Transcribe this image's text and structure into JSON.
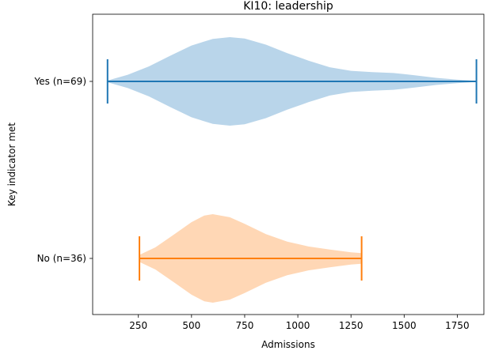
{
  "chart_data": {
    "type": "violin",
    "orientation": "horizontal",
    "title": "KI10: leadership",
    "xlabel": "Admissions",
    "ylabel": "Key indicator met",
    "xlim": [
      35,
      1875
    ],
    "xticks": [
      250,
      500,
      750,
      1000,
      1250,
      1500,
      1750
    ],
    "categories": [
      "No (n=36)",
      "Yes (n=69)"
    ],
    "grid": false,
    "series": [
      {
        "category": "Yes (n=69)",
        "min": 105,
        "max": 1840,
        "color": "#1f77b4",
        "fill": "#b9d5ea",
        "density": [
          [
            105,
            0.02
          ],
          [
            200,
            0.15
          ],
          [
            300,
            0.34
          ],
          [
            400,
            0.58
          ],
          [
            500,
            0.81
          ],
          [
            600,
            0.96
          ],
          [
            680,
            1.0
          ],
          [
            750,
            0.97
          ],
          [
            850,
            0.83
          ],
          [
            950,
            0.64
          ],
          [
            1050,
            0.47
          ],
          [
            1150,
            0.32
          ],
          [
            1250,
            0.24
          ],
          [
            1350,
            0.21
          ],
          [
            1450,
            0.19
          ],
          [
            1550,
            0.14
          ],
          [
            1650,
            0.08
          ],
          [
            1750,
            0.04
          ],
          [
            1840,
            0.01
          ]
        ]
      },
      {
        "category": "No (n=36)",
        "min": 255,
        "max": 1300,
        "color": "#ff7f0e",
        "fill": "#ffd7b5",
        "density": [
          [
            255,
            0.08
          ],
          [
            330,
            0.25
          ],
          [
            420,
            0.55
          ],
          [
            500,
            0.82
          ],
          [
            560,
            0.97
          ],
          [
            600,
            1.0
          ],
          [
            680,
            0.93
          ],
          [
            750,
            0.78
          ],
          [
            850,
            0.55
          ],
          [
            950,
            0.38
          ],
          [
            1050,
            0.27
          ],
          [
            1150,
            0.2
          ],
          [
            1250,
            0.14
          ],
          [
            1300,
            0.12
          ]
        ]
      }
    ]
  }
}
